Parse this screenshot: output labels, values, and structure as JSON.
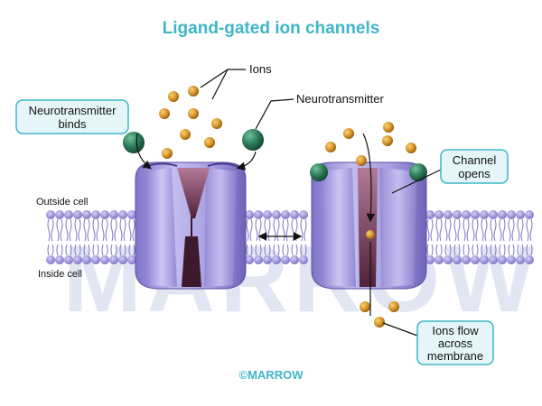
{
  "title": "Ligand-gated ion channels",
  "labels": {
    "ions": "Ions",
    "neurotransmitter": "Neurotransmitter",
    "neurotransmitter_binds": [
      "Neurotransmitter",
      "binds"
    ],
    "outside_cell": "Outside cell",
    "inside_cell": "Inside cell",
    "channel_opens": [
      "Channel",
      "opens"
    ],
    "ions_flow": [
      "Ions flow",
      "across",
      "membrane"
    ]
  },
  "watermark": "MARROW",
  "brand": "©MARROW",
  "colors": {
    "title": "#3fb6c8",
    "callout_border": "#3fb6c8",
    "callout_fill": "#e6f6f8",
    "protein": "#9a8fd8",
    "protein_dark": "#6f5fb8",
    "pore": "#6a3a52",
    "membrane_head": "#9b92dc",
    "ion": "#d79a28",
    "ligand": "#2e7a5a"
  }
}
